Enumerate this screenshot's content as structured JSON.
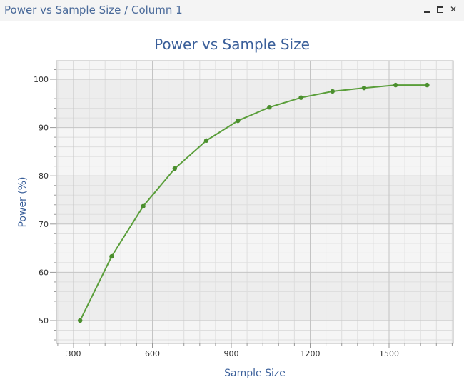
{
  "window": {
    "title": "Power vs Sample Size / Column 1",
    "controls": {
      "minimize": "minimize-icon",
      "maximize": "maximize-icon",
      "close": "✕"
    }
  },
  "colors": {
    "accent": "#3a5f9a",
    "series": "#5a9e3a",
    "marker": "#4b8f2e",
    "band": "#ededed",
    "plot_bg": "#f5f5f5"
  },
  "chart_data": {
    "type": "line",
    "title": "Power vs Sample Size",
    "xlabel": "Sample Size",
    "ylabel": "Power (%)",
    "x": [
      325,
      445,
      565,
      685,
      805,
      925,
      1045,
      1165,
      1285,
      1405,
      1525,
      1645
    ],
    "series": [
      {
        "name": "Column 1",
        "values": [
          50.0,
          63.3,
          73.7,
          81.5,
          87.3,
          91.4,
          94.2,
          96.2,
          97.5,
          98.2,
          98.8,
          98.8
        ]
      }
    ],
    "xlim": [
      235,
      1745
    ],
    "ylim": [
      45.3,
      103.8
    ],
    "xticks": [
      300,
      600,
      900,
      1200,
      1500
    ],
    "yticks": [
      50,
      60,
      70,
      80,
      90,
      100
    ],
    "grid": true,
    "markers": true,
    "legend": "none"
  }
}
